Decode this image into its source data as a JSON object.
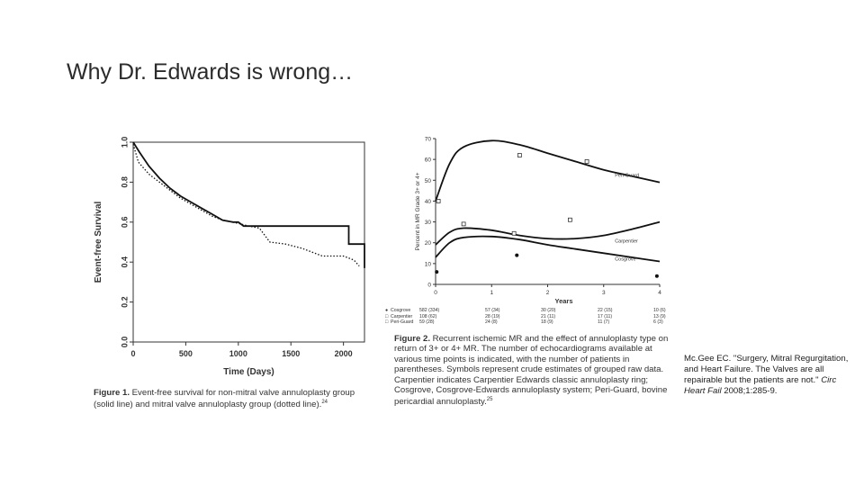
{
  "slide": {
    "title": "Why Dr. Edwards is wrong…",
    "citation_text": "Mc.Gee EC. \"Surgery, Mitral Regurgitation, and Heart Failure. The Valves are all repairable but the patients are not.\"",
    "citation_journal": "Circ Heart Fail",
    "citation_year": "2008;1:285-9."
  },
  "figure1": {
    "caption_label": "Figure 1.",
    "caption_text": "Event-free survival for non-mitral valve annuloplasty group (solid line) and mitral valve annuloplasty group (dotted line).",
    "caption_ref": "24",
    "chart_data": {
      "type": "line",
      "xlabel": "Time (Days)",
      "ylabel": "Event-free Survival",
      "xlim": [
        0,
        2200
      ],
      "ylim": [
        0,
        1.0
      ],
      "x_ticks": [
        "0",
        "500",
        "1000",
        "1500",
        "2000"
      ],
      "y_ticks": [
        "0.0",
        "0.2",
        "0.4",
        "0.6",
        "0.8",
        "1.0"
      ],
      "grid": false,
      "series": [
        {
          "line_style": "solid",
          "points": [
            [
              0,
              1.0
            ],
            [
              60,
              0.95
            ],
            [
              150,
              0.88
            ],
            [
              250,
              0.82
            ],
            [
              350,
              0.77
            ],
            [
              450,
              0.73
            ],
            [
              550,
              0.7
            ],
            [
              650,
              0.67
            ],
            [
              750,
              0.64
            ],
            [
              850,
              0.61
            ],
            [
              950,
              0.6
            ],
            [
              1000,
              0.6
            ],
            [
              1050,
              0.58
            ],
            [
              1350,
              0.58
            ],
            [
              1600,
              0.58
            ],
            [
              2050,
              0.58
            ],
            [
              2050,
              0.49
            ],
            [
              2200,
              0.49
            ],
            [
              2200,
              0.37
            ]
          ]
        },
        {
          "line_style": "dotted",
          "points": [
            [
              0,
              0.99
            ],
            [
              50,
              0.9
            ],
            [
              150,
              0.84
            ],
            [
              250,
              0.8
            ],
            [
              350,
              0.76
            ],
            [
              450,
              0.72
            ],
            [
              550,
              0.69
            ],
            [
              650,
              0.66
            ],
            [
              750,
              0.63
            ],
            [
              850,
              0.61
            ],
            [
              950,
              0.6
            ],
            [
              1100,
              0.58
            ],
            [
              1200,
              0.57
            ],
            [
              1300,
              0.5
            ],
            [
              1450,
              0.49
            ],
            [
              1600,
              0.47
            ],
            [
              1800,
              0.43
            ],
            [
              2000,
              0.43
            ],
            [
              2100,
              0.41
            ],
            [
              2150,
              0.38
            ]
          ]
        }
      ]
    }
  },
  "figure2": {
    "caption_label": "Figure 2.",
    "caption_text": "Recurrent ischemic MR and the effect of annuloplasty type on return of 3+ or 4+ MR. The number of echocardiograms available at various time points is indicated, with the number of patients in parentheses. Symbols represent crude estimates of grouped raw data. Carpentier indicates Carpentier Edwards classic annuloplasty ring; Cosgrove, Cosgrove-Edwards annuloplasty system; Peri-Guard, bovine pericardial annuloplasty.",
    "caption_ref": "25",
    "table_rows": [
      {
        "label": "Cosgrove",
        "marker": "●",
        "values": [
          "582 (334)",
          "57 (34)",
          "30 (20)",
          "22 (15)",
          "10 (6)"
        ]
      },
      {
        "label": "Carpentier",
        "marker": "□",
        "values": [
          "108 (62)",
          "28 (19)",
          "21 (11)",
          "17 (11)",
          "13 (9)"
        ]
      },
      {
        "label": "Peri-Guard",
        "marker": "□",
        "values": [
          "59 (28)",
          "24 (8)",
          "18 (9)",
          "11 (7)",
          "6 (3)"
        ]
      }
    ],
    "chart_data": {
      "type": "line",
      "xlabel": "Years",
      "ylabel": "Percent in MR Grade 3+ or 4+",
      "xlim": [
        0,
        4
      ],
      "ylim": [
        0,
        70
      ],
      "x_ticks": [
        "0",
        "1",
        "2",
        "3",
        "4"
      ],
      "y_ticks": [
        "0",
        "10",
        "20",
        "30",
        "40",
        "50",
        "60",
        "70"
      ],
      "series": [
        {
          "name": "Peri-Guard",
          "curve": [
            [
              0,
              40
            ],
            [
              0.25,
              58
            ],
            [
              0.5,
              66
            ],
            [
              1,
              69
            ],
            [
              1.5,
              67
            ],
            [
              2,
              63
            ],
            [
              2.5,
              59
            ],
            [
              3,
              55
            ],
            [
              3.5,
              52
            ],
            [
              4,
              49
            ]
          ],
          "points": [
            [
              0.05,
              40
            ],
            [
              1.5,
              62
            ],
            [
              2.7,
              59
            ]
          ]
        },
        {
          "name": "Carpentier",
          "curve": [
            [
              0,
              19
            ],
            [
              0.25,
              25
            ],
            [
              0.5,
              27
            ],
            [
              1,
              26
            ],
            [
              1.5,
              23.5
            ],
            [
              2,
              22
            ],
            [
              2.5,
              22
            ],
            [
              3,
              23.5
            ],
            [
              3.5,
              26.5
            ],
            [
              4,
              30
            ]
          ],
          "points": [
            [
              0.5,
              29
            ],
            [
              1.4,
              24.5
            ],
            [
              2.4,
              31
            ]
          ]
        },
        {
          "name": "Cosgrove",
          "curve": [
            [
              0,
              13
            ],
            [
              0.25,
              20
            ],
            [
              0.5,
              22.5
            ],
            [
              1,
              23
            ],
            [
              1.5,
              21.5
            ],
            [
              2,
              19
            ],
            [
              2.5,
              17
            ],
            [
              3,
              15
            ],
            [
              3.5,
              13
            ],
            [
              4,
              11
            ]
          ],
          "points": [
            [
              0.02,
              6
            ],
            [
              1.45,
              14
            ],
            [
              3.95,
              4
            ]
          ]
        }
      ]
    }
  }
}
